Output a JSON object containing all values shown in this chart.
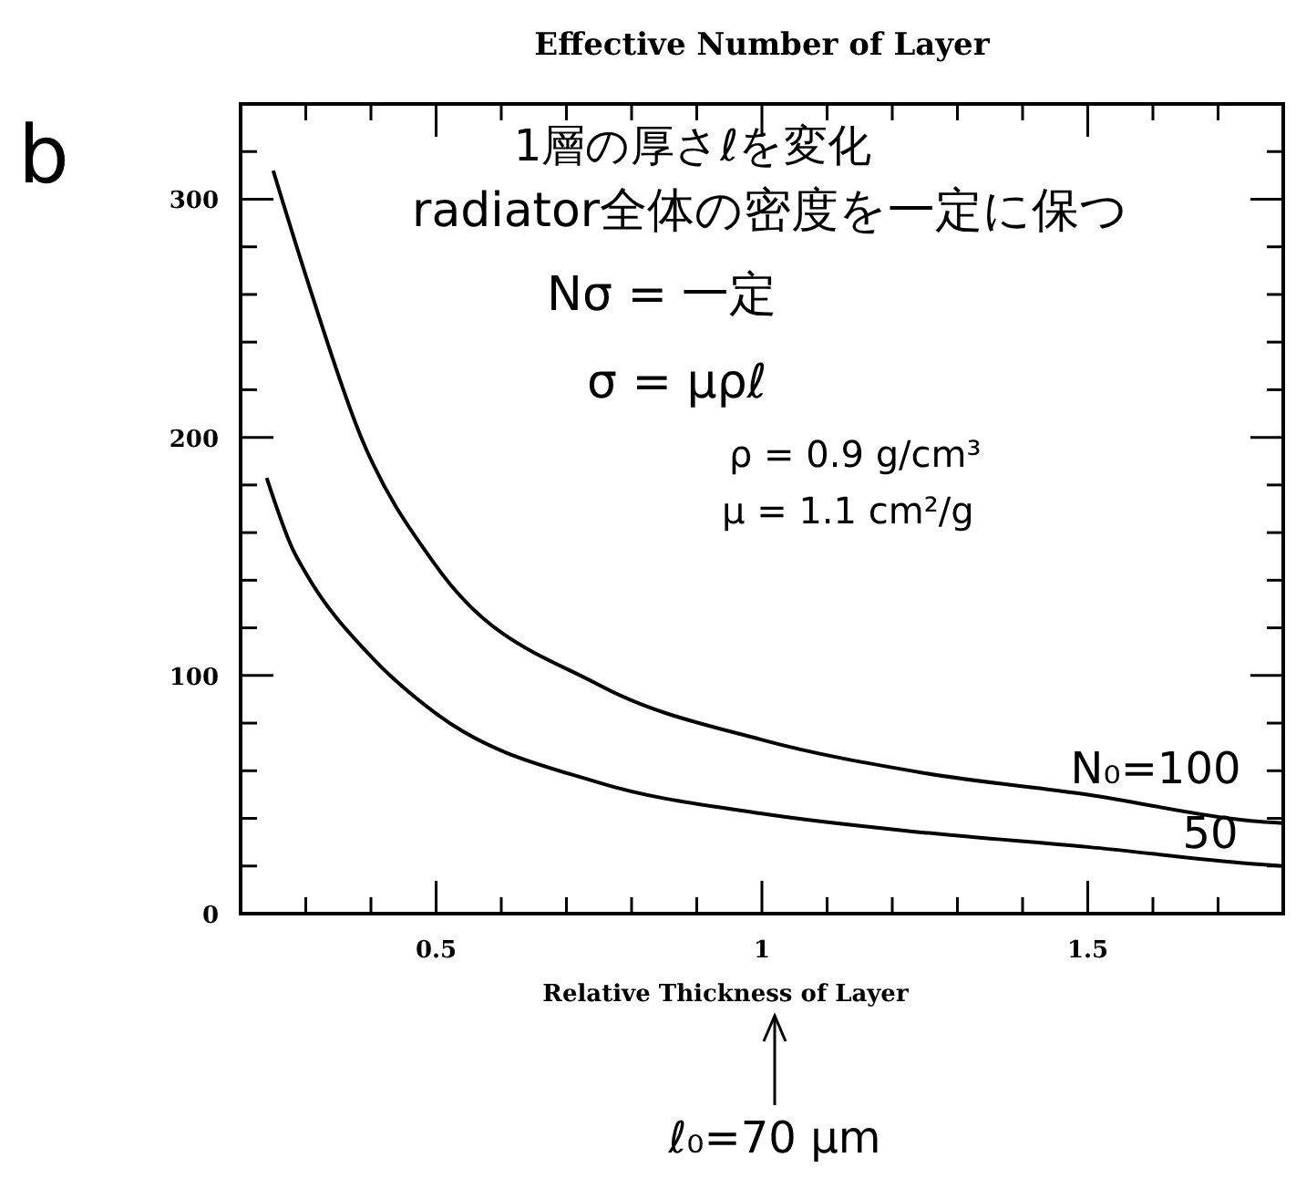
{
  "chart_data": {
    "type": "line",
    "title": "Effective Number of Layer",
    "xlabel": "Relative Thickness of Layer",
    "annotations": [
      "b",
      "1層の厚さℓを変化",
      "radiator全体の密度を一定に保つ",
      "Nσ = 一定",
      "σ = μρℓ",
      "ρ = 0.9 g/cm³",
      "μ = 1.1 cm²/g",
      "ℓ₀=70 μm"
    ],
    "xlim": [
      0.2,
      1.8
    ],
    "ylim": [
      0,
      340
    ],
    "xticks": [
      {
        "value": 0.3,
        "label": null
      },
      {
        "value": 0.4,
        "label": null
      },
      {
        "value": 0.5,
        "label": "0.5"
      },
      {
        "value": 0.6,
        "label": null
      },
      {
        "value": 0.7,
        "label": null
      },
      {
        "value": 0.8,
        "label": null
      },
      {
        "value": 0.9,
        "label": null
      },
      1,
      {
        "value": 1.1,
        "label": null
      },
      {
        "value": 1.2,
        "label": null
      },
      {
        "value": 1.3,
        "label": null
      },
      {
        "value": 1.4,
        "label": null
      },
      1.5,
      {
        "value": 1.6,
        "label": null
      },
      {
        "value": 1.7,
        "label": null
      }
    ],
    "yticks": [
      0,
      {
        "value": 20,
        "label": null
      },
      {
        "value": 40,
        "label": null
      },
      {
        "value": 60,
        "label": null
      },
      {
        "value": 80,
        "label": null
      },
      100,
      {
        "value": 120,
        "label": null
      },
      {
        "value": 140,
        "label": null
      },
      {
        "value": 160,
        "label": null
      },
      {
        "value": 180,
        "label": null
      },
      200,
      {
        "value": 220,
        "label": null
      },
      {
        "value": 240,
        "label": null
      },
      {
        "value": 260,
        "label": null
      },
      {
        "value": 280,
        "label": null
      },
      300,
      {
        "value": 320,
        "label": null
      }
    ],
    "marker": "none",
    "line_style": "solid",
    "grid": false,
    "legend": "right",
    "series": [
      {
        "name": "N₀=100",
        "color": "#000000",
        "x": [
          0.25,
          0.3,
          0.385,
          0.5,
          0.75,
          1.0,
          1.25,
          1.5,
          1.75,
          1.8
        ],
        "values": [
          312,
          268,
          200,
          146,
          96,
          73,
          59,
          50,
          39,
          38
        ]
      },
      {
        "name": "50",
        "color": "#000000",
        "x": [
          0.24,
          0.28,
          0.3,
          0.4,
          0.5,
          0.75,
          1.0,
          1.25,
          1.5,
          1.75,
          1.8
        ],
        "values": [
          183,
          153,
          143,
          108,
          84,
          55,
          42,
          34,
          28,
          21,
          20
        ]
      }
    ]
  }
}
